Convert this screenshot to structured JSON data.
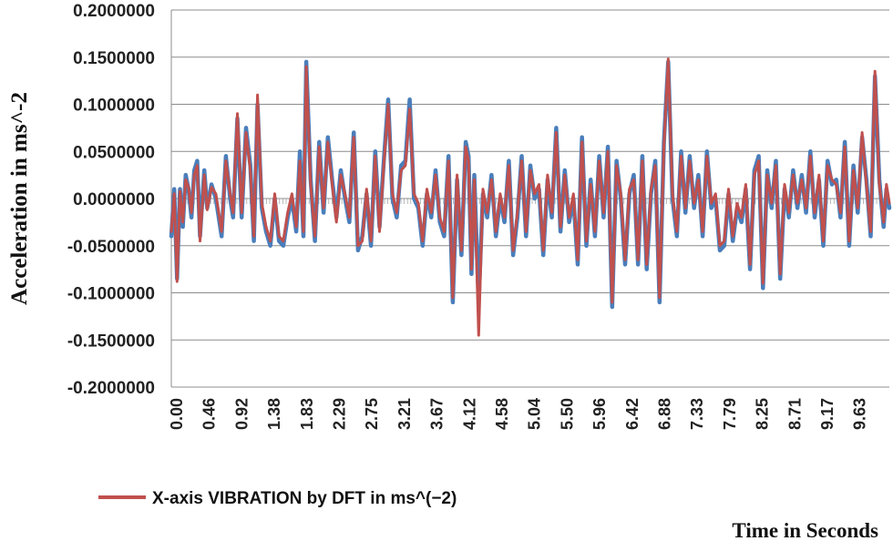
{
  "chart_data": {
    "type": "line",
    "title": "",
    "xlabel": "Time in Seconds",
    "ylabel": "Acceleration in ms^-2",
    "ylim": [
      -0.2,
      0.2
    ],
    "xlim": [
      0,
      10
    ],
    "yticks": [
      "0.2000000",
      "0.1500000",
      "0.1000000",
      "0.0500000",
      "0.0000000",
      "-0.0500000",
      "-0.1000000",
      "-0.1500000",
      "-0.2000000"
    ],
    "xticks": [
      "0.00",
      "0.46",
      "0.92",
      "1.38",
      "1.83",
      "2.29",
      "2.75",
      "3.21",
      "3.67",
      "4.12",
      "4.58",
      "5.04",
      "5.50",
      "5.96",
      "6.42",
      "6.88",
      "7.33",
      "7.79",
      "8.25",
      "8.71",
      "9.17",
      "9.63"
    ],
    "grid": "horizontal",
    "legend": "bottom-left",
    "colors": {
      "measured": "#4a7ebb",
      "dft": "#c0504d"
    },
    "series": [
      {
        "name": "",
        "x": [
          0.0,
          0.04,
          0.08,
          0.12,
          0.16,
          0.2,
          0.24,
          0.28,
          0.32,
          0.36,
          0.4,
          0.46,
          0.5,
          0.56,
          0.62,
          0.7,
          0.76,
          0.82,
          0.86,
          0.92,
          0.98,
          1.04,
          1.1,
          1.15,
          1.2,
          1.26,
          1.32,
          1.38,
          1.44,
          1.5,
          1.56,
          1.62,
          1.68,
          1.74,
          1.79,
          1.84,
          1.88,
          1.94,
          2.0,
          2.06,
          2.12,
          2.18,
          2.24,
          2.3,
          2.36,
          2.42,
          2.48,
          2.54,
          2.6,
          2.66,
          2.72,
          2.78,
          2.84,
          2.9,
          2.96,
          3.02,
          3.08,
          3.14,
          3.2,
          3.26,
          3.32,
          3.38,
          3.44,
          3.5,
          3.56,
          3.62,
          3.68,
          3.74,
          3.8,
          3.86,
          3.92,
          3.98,
          4.04,
          4.1,
          4.14,
          4.18,
          4.22,
          4.28,
          4.34,
          4.4,
          4.46,
          4.52,
          4.58,
          4.64,
          4.7,
          4.76,
          4.82,
          4.88,
          4.94,
          5.0,
          5.06,
          5.12,
          5.18,
          5.24,
          5.3,
          5.36,
          5.42,
          5.48,
          5.54,
          5.6,
          5.66,
          5.72,
          5.78,
          5.84,
          5.9,
          5.96,
          6.02,
          6.08,
          6.14,
          6.2,
          6.26,
          6.32,
          6.38,
          6.44,
          6.5,
          6.56,
          6.62,
          6.68,
          6.74,
          6.8,
          6.86,
          6.92,
          6.98,
          7.04,
          7.1,
          7.16,
          7.22,
          7.28,
          7.34,
          7.4,
          7.46,
          7.52,
          7.58,
          7.64,
          7.7,
          7.76,
          7.82,
          7.88,
          7.94,
          8.0,
          8.06,
          8.12,
          8.18,
          8.24,
          8.3,
          8.36,
          8.42,
          8.48,
          8.54,
          8.6,
          8.66,
          8.72,
          8.78,
          8.84,
          8.9,
          8.96,
          9.02,
          9.08,
          9.14,
          9.2,
          9.26,
          9.32,
          9.38,
          9.44,
          9.5,
          9.56,
          9.62,
          9.68,
          9.74,
          9.8,
          9.86,
          9.92,
          9.96,
          10.0
        ],
        "values": [
          -0.04,
          0.01,
          -0.085,
          0.01,
          -0.03,
          0.025,
          0.01,
          -0.02,
          0.03,
          0.04,
          -0.04,
          0.03,
          -0.01,
          0.015,
          0.0,
          -0.04,
          0.045,
          0.0,
          -0.02,
          0.085,
          -0.02,
          0.075,
          0.035,
          -0.045,
          0.1,
          -0.01,
          -0.035,
          -0.05,
          0.0,
          -0.045,
          -0.05,
          -0.02,
          0.0,
          -0.035,
          0.05,
          -0.04,
          0.145,
          0.02,
          -0.045,
          0.06,
          -0.015,
          0.065,
          0.02,
          -0.02,
          0.03,
          0.0,
          -0.025,
          0.07,
          -0.055,
          -0.04,
          0.005,
          -0.05,
          0.05,
          -0.03,
          0.04,
          0.105,
          0.0,
          -0.02,
          0.035,
          0.04,
          0.105,
          0.0,
          -0.01,
          -0.05,
          0.005,
          -0.02,
          0.03,
          -0.025,
          -0.04,
          0.045,
          -0.11,
          0.02,
          -0.06,
          0.06,
          0.045,
          -0.08,
          0.025,
          -0.11,
          0.005,
          -0.02,
          0.025,
          -0.04,
          0.0,
          -0.025,
          0.04,
          -0.06,
          -0.02,
          0.045,
          -0.04,
          0.035,
          0.0,
          0.01,
          -0.06,
          0.02,
          -0.02,
          0.075,
          -0.035,
          0.03,
          -0.025,
          0.0,
          -0.07,
          0.065,
          -0.05,
          0.02,
          -0.04,
          0.045,
          -0.02,
          0.055,
          -0.115,
          0.04,
          0.0,
          -0.07,
          0.005,
          0.025,
          -0.07,
          0.045,
          -0.075,
          0.005,
          0.04,
          -0.11,
          0.06,
          0.145,
          0.0,
          -0.04,
          0.05,
          -0.015,
          0.045,
          -0.01,
          0.025,
          -0.04,
          0.05,
          -0.01,
          0.0,
          -0.055,
          -0.05,
          0.005,
          -0.045,
          -0.01,
          -0.025,
          0.01,
          -0.075,
          0.03,
          0.045,
          -0.095,
          0.03,
          -0.01,
          0.04,
          -0.085,
          0.01,
          -0.02,
          0.03,
          -0.01,
          0.025,
          -0.015,
          0.05,
          -0.02,
          0.02,
          -0.05,
          0.04,
          0.015,
          0.02,
          -0.02,
          0.06,
          -0.05,
          0.035,
          -0.015,
          0.065,
          0.02,
          -0.04,
          0.13,
          0.02,
          -0.03,
          0.01,
          -0.01
        ]
      },
      {
        "name": "X-axis VIBRATION by DFT in  ms^(−2)",
        "x": [
          0.0,
          0.04,
          0.08,
          0.12,
          0.16,
          0.2,
          0.24,
          0.28,
          0.32,
          0.36,
          0.4,
          0.46,
          0.5,
          0.56,
          0.62,
          0.7,
          0.76,
          0.82,
          0.86,
          0.92,
          0.98,
          1.04,
          1.1,
          1.15,
          1.2,
          1.26,
          1.32,
          1.38,
          1.44,
          1.5,
          1.56,
          1.62,
          1.68,
          1.74,
          1.79,
          1.84,
          1.88,
          1.94,
          2.0,
          2.06,
          2.12,
          2.18,
          2.24,
          2.3,
          2.36,
          2.42,
          2.48,
          2.54,
          2.6,
          2.66,
          2.72,
          2.78,
          2.84,
          2.9,
          2.96,
          3.02,
          3.08,
          3.14,
          3.2,
          3.26,
          3.32,
          3.38,
          3.44,
          3.5,
          3.56,
          3.62,
          3.68,
          3.74,
          3.8,
          3.86,
          3.92,
          3.98,
          4.04,
          4.1,
          4.14,
          4.18,
          4.22,
          4.28,
          4.34,
          4.4,
          4.46,
          4.52,
          4.58,
          4.64,
          4.7,
          4.76,
          4.82,
          4.88,
          4.94,
          5.0,
          5.06,
          5.12,
          5.18,
          5.24,
          5.3,
          5.36,
          5.42,
          5.48,
          5.54,
          5.6,
          5.66,
          5.72,
          5.78,
          5.84,
          5.9,
          5.96,
          6.02,
          6.08,
          6.14,
          6.2,
          6.26,
          6.32,
          6.38,
          6.44,
          6.5,
          6.56,
          6.62,
          6.68,
          6.74,
          6.8,
          6.86,
          6.92,
          6.98,
          7.04,
          7.1,
          7.16,
          7.22,
          7.28,
          7.34,
          7.4,
          7.46,
          7.52,
          7.58,
          7.64,
          7.7,
          7.76,
          7.82,
          7.88,
          7.94,
          8.0,
          8.06,
          8.12,
          8.18,
          8.24,
          8.3,
          8.36,
          8.42,
          8.48,
          8.54,
          8.6,
          8.66,
          8.72,
          8.78,
          8.84,
          8.9,
          8.96,
          9.02,
          9.08,
          9.14,
          9.2,
          9.26,
          9.32,
          9.38,
          9.44,
          9.5,
          9.56,
          9.62,
          9.68,
          9.74,
          9.8,
          9.86,
          9.92,
          9.96,
          10.0
        ],
        "values": [
          -0.035,
          0.005,
          -0.088,
          0.008,
          -0.025,
          0.02,
          0.012,
          -0.015,
          0.025,
          0.035,
          -0.045,
          0.025,
          -0.012,
          0.012,
          0.005,
          -0.035,
          0.04,
          0.005,
          -0.015,
          0.09,
          -0.015,
          0.07,
          0.03,
          -0.04,
          0.11,
          -0.005,
          -0.03,
          -0.045,
          0.005,
          -0.04,
          -0.045,
          -0.015,
          0.005,
          -0.03,
          0.04,
          -0.035,
          0.14,
          0.015,
          -0.04,
          0.055,
          -0.01,
          0.06,
          0.015,
          -0.025,
          0.025,
          0.005,
          -0.02,
          0.065,
          -0.05,
          -0.045,
          0.01,
          -0.045,
          0.045,
          -0.035,
          0.035,
          0.1,
          0.005,
          -0.015,
          0.03,
          0.035,
          0.095,
          0.005,
          -0.005,
          -0.045,
          0.01,
          -0.015,
          0.025,
          -0.02,
          -0.035,
          0.04,
          -0.105,
          0.025,
          -0.055,
          0.055,
          0.04,
          -0.075,
          0.02,
          -0.145,
          0.01,
          -0.015,
          0.02,
          -0.035,
          0.005,
          -0.02,
          0.035,
          -0.055,
          -0.015,
          0.04,
          -0.035,
          0.03,
          0.005,
          0.015,
          -0.055,
          0.025,
          -0.015,
          0.07,
          -0.03,
          0.025,
          -0.02,
          0.005,
          -0.065,
          0.06,
          -0.045,
          0.015,
          -0.035,
          0.04,
          -0.015,
          0.05,
          -0.11,
          0.035,
          0.005,
          -0.065,
          0.01,
          0.02,
          -0.065,
          0.04,
          -0.07,
          0.01,
          0.035,
          -0.105,
          0.055,
          0.148,
          0.005,
          -0.035,
          0.045,
          -0.01,
          0.04,
          -0.005,
          0.02,
          -0.035,
          0.045,
          -0.005,
          0.005,
          -0.05,
          -0.045,
          0.01,
          -0.04,
          -0.005,
          -0.02,
          0.015,
          -0.07,
          0.025,
          0.04,
          -0.09,
          0.025,
          -0.005,
          0.035,
          -0.08,
          0.015,
          -0.015,
          0.025,
          -0.005,
          0.02,
          -0.01,
          0.045,
          -0.015,
          0.025,
          -0.045,
          0.035,
          0.02,
          0.015,
          -0.015,
          0.055,
          -0.045,
          0.03,
          -0.01,
          0.07,
          0.015,
          -0.035,
          0.135,
          0.015,
          -0.025,
          0.015,
          -0.005
        ]
      }
    ]
  }
}
